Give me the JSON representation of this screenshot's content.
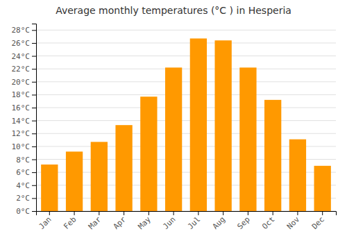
{
  "chart_data": {
    "type": "bar",
    "title": "Average monthly temperatures (°C ) in Hesperia",
    "categories": [
      "Jan",
      "Feb",
      "Mar",
      "Apr",
      "May",
      "Jun",
      "Jul",
      "Aug",
      "Sep",
      "Oct",
      "Nov",
      "Dec"
    ],
    "values": [
      7.2,
      9.2,
      10.7,
      13.3,
      17.7,
      22.2,
      26.7,
      26.4,
      22.2,
      17.2,
      11.1,
      7.0
    ],
    "color": "#FF9900",
    "ylim": [
      0,
      29
    ],
    "yticks": [
      {
        "value": 0,
        "label": "0°C"
      },
      {
        "value": 2,
        "label": "2°C"
      },
      {
        "value": 4,
        "label": "4°C"
      },
      {
        "value": 6,
        "label": "6°C"
      },
      {
        "value": 8,
        "label": "8°C"
      },
      {
        "value": 10,
        "label": "10°C"
      },
      {
        "value": 12,
        "label": "12°C"
      },
      {
        "value": 14,
        "label": "14°C"
      },
      {
        "value": 16,
        "label": "16°C"
      },
      {
        "value": 18,
        "label": "18°C"
      },
      {
        "value": 20,
        "label": "20°C"
      },
      {
        "value": 22,
        "label": "22°C"
      },
      {
        "value": 24,
        "label": "24°C"
      },
      {
        "value": 26,
        "label": "26°C"
      },
      {
        "value": 28,
        "label": "28°C"
      }
    ],
    "grid": true
  }
}
